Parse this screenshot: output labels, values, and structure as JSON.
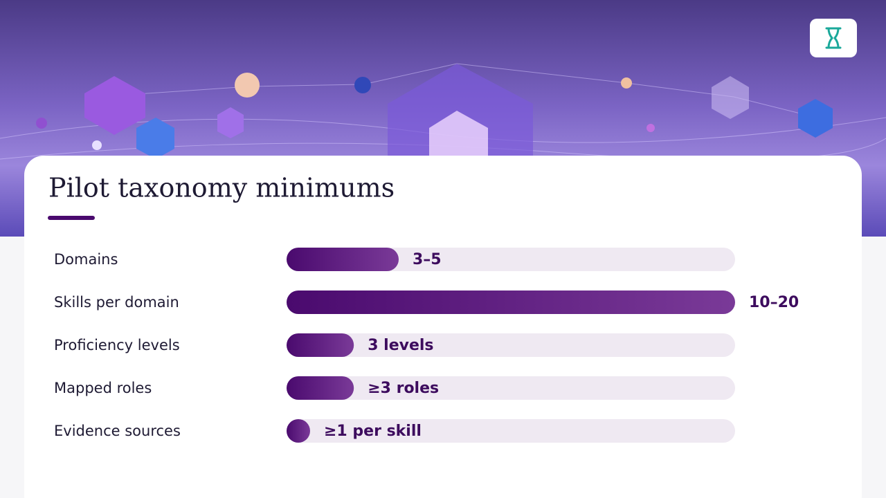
{
  "chart_data": {
    "type": "bar",
    "orientation": "horizontal",
    "title": "Pilot taxonomy minimums",
    "categories": [
      "Domains",
      "Skills per domain",
      "Proficiency levels",
      "Mapped roles",
      "Evidence sources"
    ],
    "values": [
      5,
      20,
      3,
      3,
      1
    ],
    "value_labels": [
      "3–5",
      "10–20",
      "3 levels",
      "≥3 roles",
      "≥1 per skill"
    ],
    "xlim": [
      0,
      20
    ],
    "color": "#4a0a6e"
  }
}
